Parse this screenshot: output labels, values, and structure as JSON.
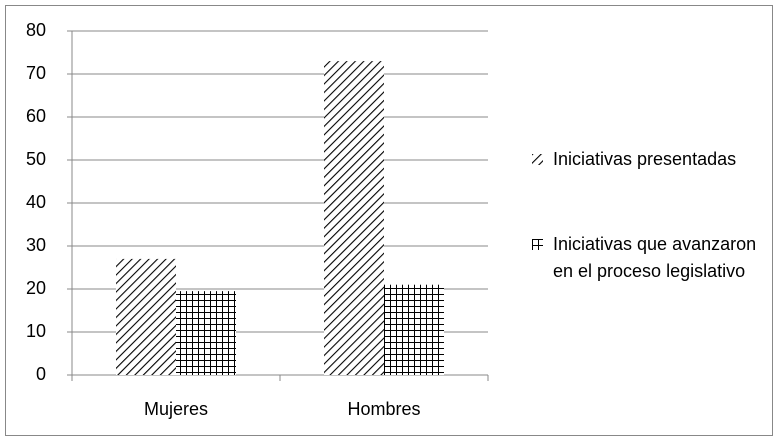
{
  "chart_data": {
    "type": "bar",
    "categories": [
      "Mujeres",
      "Hombres"
    ],
    "series": [
      {
        "name": "Iniciativas presentadas",
        "color": "#000000",
        "pattern": "diagonal",
        "values": [
          27,
          73
        ]
      },
      {
        "name": "Iniciativas que avanzaron en el proceso legislativo",
        "color": "#000000",
        "pattern": "grid",
        "values": [
          19.5,
          21
        ]
      }
    ],
    "ylim": [
      0,
      80
    ],
    "yticks": [
      0,
      10,
      20,
      30,
      40,
      50,
      60,
      70,
      80
    ],
    "grid": true,
    "legend": "right"
  }
}
